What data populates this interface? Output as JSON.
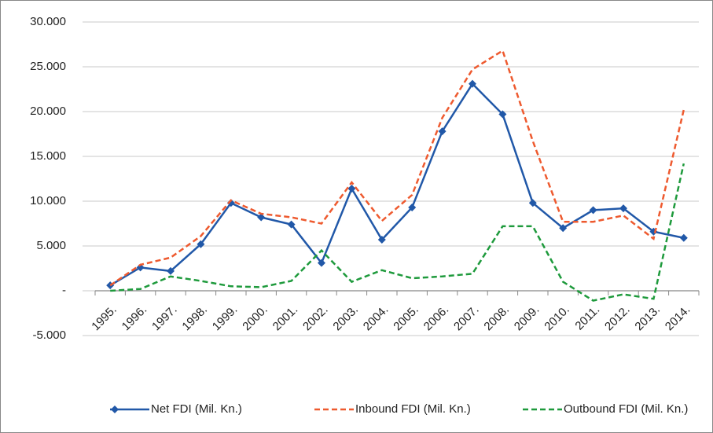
{
  "chart_data": {
    "type": "line",
    "categories": [
      "1995.",
      "1996.",
      "1997.",
      "1998.",
      "1999.",
      "2000.",
      "2001.",
      "2002.",
      "2003.",
      "2004.",
      "2005.",
      "2006.",
      "2007.",
      "2008.",
      "2009.",
      "2010.",
      "2011.",
      "2012.",
      "2013.",
      "2014."
    ],
    "series": [
      {
        "name": "Net FDI (Mil. Kn.)",
        "color": "#2158a8",
        "dash": "solid",
        "marker": "diamond",
        "values": [
          600,
          2600,
          2200,
          5200,
          9800,
          8200,
          7400,
          3100,
          11400,
          5700,
          9300,
          17800,
          23100,
          19700,
          9800,
          7000,
          9000,
          9200,
          6600,
          5900
        ]
      },
      {
        "name": "Inbound FDI (Mil. Kn.)",
        "color": "#ee5a2f",
        "dash": "dashed",
        "values": [
          600,
          2900,
          3700,
          6100,
          10100,
          8600,
          8200,
          7500,
          12100,
          7800,
          10700,
          19300,
          24700,
          26800,
          16700,
          7700,
          7700,
          8400,
          5800,
          20200
        ]
      },
      {
        "name": "Outbound FDI (Mil. Kn.)",
        "color": "#1e9a3c",
        "dash": "dashed",
        "values": [
          0,
          200,
          1600,
          1100,
          500,
          400,
          1100,
          4500,
          1000,
          2300,
          1400,
          1600,
          1900,
          7200,
          7200,
          1000,
          -1100,
          -400,
          -900,
          14200
        ]
      }
    ],
    "ylim": [
      -5000,
      30000
    ],
    "yticks": [
      {
        "value": -5000,
        "label": "-5.000"
      },
      {
        "value": 0,
        "label": "-"
      },
      {
        "value": 5000,
        "label": "5.000"
      },
      {
        "value": 10000,
        "label": "10.000"
      },
      {
        "value": 15000,
        "label": "15.000"
      },
      {
        "value": 20000,
        "label": "20.000"
      },
      {
        "value": 25000,
        "label": "25.000"
      },
      {
        "value": 30000,
        "label": "30.000"
      }
    ],
    "grid": true,
    "legend": "bottom"
  }
}
